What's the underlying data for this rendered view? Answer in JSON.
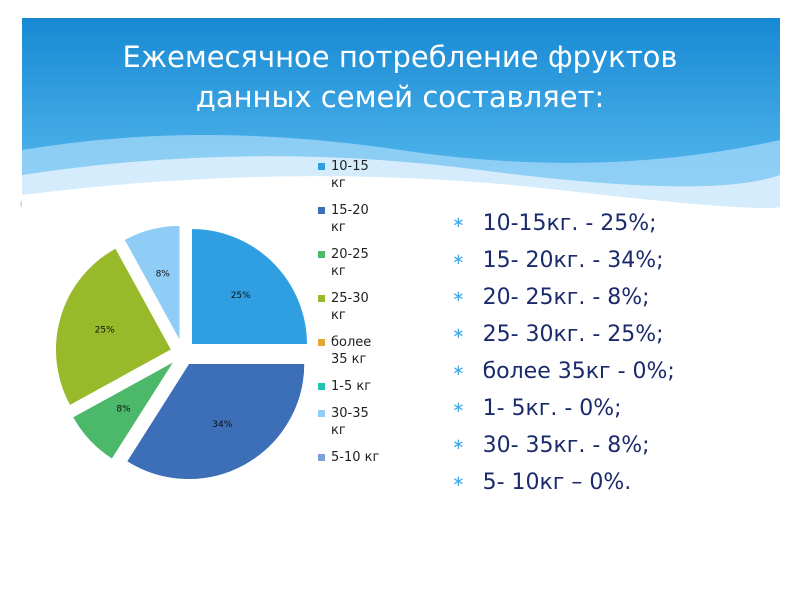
{
  "title": [
    "Ежемесячное потребление фруктов",
    "данных семей составляет:"
  ],
  "chart_data": {
    "type": "pie",
    "categories": [
      "10-15 кг",
      "15-20 кг",
      "20-25 кг",
      "25-30 кг",
      "более 35 кг",
      "1-5 кг",
      "30-35 кг",
      "5-10 кг"
    ],
    "values": [
      25,
      34,
      8,
      25,
      0,
      0,
      8,
      0
    ],
    "value_labels": [
      "25%",
      "34%",
      "8%",
      "25%",
      null,
      null,
      "8%",
      null
    ],
    "colors": [
      "#2f9fe2",
      "#3c6fb8",
      "#4cb86a",
      "#97b92a",
      "#e3a733",
      "#22c3b3",
      "#8fccf6",
      "#7f9fd8"
    ],
    "legend": "right"
  },
  "bullets": [
    "10-15кг. -  25%;",
    "15- 20кг. -  34%;",
    "20- 25кг. - 8%;",
    "25- 30кг. - 25%;",
    "более 35кг -  0%;",
    "1- 5кг. - 0%;",
    "30- 35кг. -  8%;",
    "5- 10кг – 0%."
  ]
}
